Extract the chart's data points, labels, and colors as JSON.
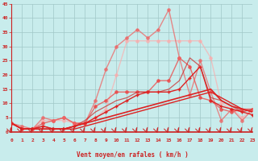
{
  "xlabel": "Vent moyen/en rafales ( km/h )",
  "xlim": [
    0,
    23
  ],
  "ylim": [
    0,
    45
  ],
  "yticks": [
    0,
    5,
    10,
    15,
    20,
    25,
    30,
    35,
    40,
    45
  ],
  "xticks": [
    0,
    1,
    2,
    3,
    4,
    5,
    6,
    7,
    8,
    9,
    10,
    11,
    12,
    13,
    14,
    15,
    16,
    17,
    18,
    19,
    20,
    21,
    22,
    23
  ],
  "background_color": "#c8ecec",
  "grid_color": "#a0c8c8",
  "lines": [
    {
      "x": [
        0,
        1,
        2,
        3,
        4,
        5,
        6,
        7,
        8,
        9,
        10,
        11,
        12,
        13,
        14,
        15,
        16,
        17,
        18,
        19,
        20,
        21,
        22,
        23
      ],
      "y": [
        3,
        1,
        1,
        1,
        1,
        1,
        1,
        2,
        3,
        4,
        5,
        6,
        7,
        8,
        9,
        10,
        11,
        12,
        13,
        14,
        12,
        10,
        8,
        7
      ],
      "color": "#dd2222",
      "linewidth": 1.0,
      "marker": null,
      "alpha": 1.0,
      "zorder": 4
    },
    {
      "x": [
        0,
        1,
        2,
        3,
        4,
        5,
        6,
        7,
        8,
        9,
        10,
        11,
        12,
        13,
        14,
        15,
        16,
        17,
        18,
        19,
        20,
        21,
        22,
        23
      ],
      "y": [
        3,
        1,
        1,
        2,
        1,
        1,
        2,
        3,
        5,
        7,
        9,
        11,
        13,
        14,
        14,
        14,
        15,
        19,
        23,
        11,
        9,
        8,
        7,
        6
      ],
      "color": "#dd2222",
      "linewidth": 1.0,
      "marker": "+",
      "markersize": 3,
      "markeredgewidth": 1.0,
      "alpha": 1.0,
      "zorder": 5
    },
    {
      "x": [
        0,
        1,
        2,
        3,
        4,
        5,
        6,
        7,
        8,
        9,
        10,
        11,
        12,
        13,
        14,
        15,
        16,
        17,
        18,
        19,
        20,
        21,
        22,
        23
      ],
      "y": [
        3,
        1,
        1,
        2,
        1,
        1,
        2,
        4,
        7,
        9,
        11,
        12,
        14,
        14,
        14,
        15,
        18,
        26,
        23,
        12,
        11,
        9,
        7,
        8
      ],
      "color": "#cc2222",
      "linewidth": 0.9,
      "marker": null,
      "alpha": 0.7,
      "zorder": 3
    },
    {
      "x": [
        0,
        1,
        2,
        3,
        4,
        5,
        6,
        7,
        8,
        9,
        10,
        11,
        12,
        13,
        14,
        15,
        16,
        17,
        18,
        19,
        20,
        21,
        22,
        23
      ],
      "y": [
        3,
        1,
        1,
        1,
        1,
        1,
        2,
        3,
        4,
        5,
        6,
        7,
        8,
        9,
        10,
        11,
        12,
        13,
        14,
        15,
        11,
        9,
        8,
        7
      ],
      "color": "#dd2222",
      "linewidth": 1.2,
      "marker": null,
      "alpha": 1.0,
      "zorder": 4
    },
    {
      "x": [
        0,
        1,
        2,
        3,
        4,
        5,
        6,
        7,
        8,
        9,
        10,
        11,
        12,
        13,
        14,
        15,
        16,
        17,
        18,
        19,
        20,
        21,
        22,
        23
      ],
      "y": [
        3,
        1,
        1,
        3,
        4,
        5,
        3,
        3,
        9,
        11,
        14,
        14,
        14,
        14,
        18,
        18,
        26,
        23,
        12,
        11,
        8,
        7,
        8,
        8
      ],
      "color": "#ee4444",
      "linewidth": 1.0,
      "marker": "o",
      "markersize": 2.5,
      "markeredgewidth": 0.8,
      "alpha": 0.75,
      "zorder": 2
    },
    {
      "x": [
        0,
        1,
        2,
        3,
        4,
        5,
        6,
        7,
        8,
        9,
        10,
        11,
        12,
        13,
        14,
        15,
        16,
        17,
        18,
        19,
        20,
        21,
        22,
        23
      ],
      "y": [
        3,
        2,
        1,
        5,
        4,
        5,
        3,
        3,
        11,
        22,
        30,
        33,
        36,
        33,
        36,
        43,
        26,
        13,
        25,
        14,
        4,
        8,
        4,
        8
      ],
      "color": "#ee6666",
      "linewidth": 1.0,
      "marker": "o",
      "markersize": 2.5,
      "markeredgewidth": 0.8,
      "alpha": 0.75,
      "zorder": 2
    },
    {
      "x": [
        0,
        1,
        2,
        3,
        4,
        5,
        6,
        7,
        8,
        9,
        10,
        11,
        12,
        13,
        14,
        15,
        16,
        17,
        18,
        19,
        20,
        21,
        22,
        23
      ],
      "y": [
        3,
        1,
        1,
        4,
        4,
        4,
        3,
        3,
        5,
        8,
        20,
        32,
        32,
        32,
        32,
        32,
        32,
        32,
        32,
        26,
        10,
        8,
        5,
        8
      ],
      "color": "#ffaaaa",
      "linewidth": 1.0,
      "marker": "o",
      "markersize": 2.5,
      "markeredgewidth": 0.8,
      "alpha": 0.65,
      "zorder": 1
    }
  ],
  "arrow_color": "#cc2222",
  "axis_color": "#cc2222",
  "tick_color": "#cc2222",
  "label_color": "#cc2222"
}
